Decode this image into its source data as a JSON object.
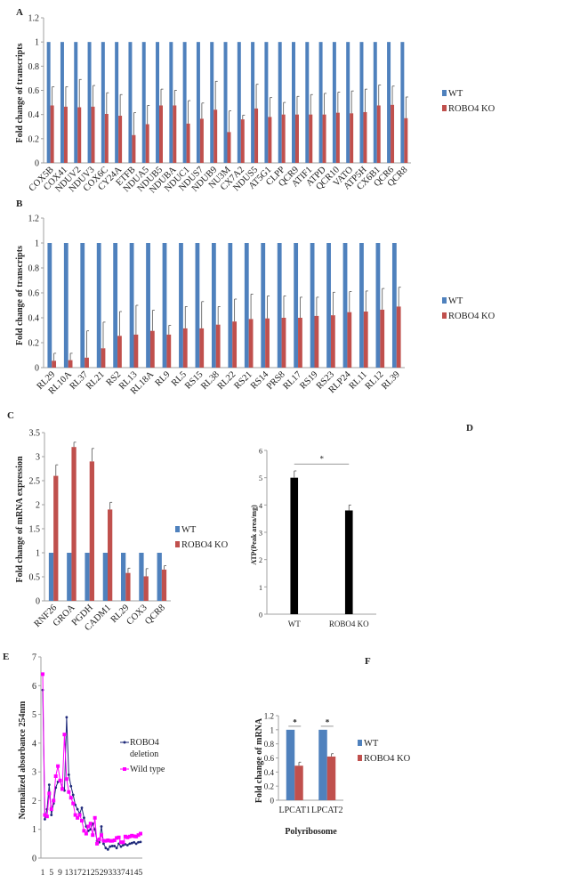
{
  "colors": {
    "wt": "#4f81bd",
    "ko": "#c0504d",
    "black": "#000000",
    "robo4_line": "#1f2a7a",
    "wildtype_line": "#ff00ff",
    "axis": "#a0a0a0"
  },
  "chart_data": [
    {
      "id": "A",
      "panel_label": "A",
      "type": "bar",
      "ylabel": "Fold change of transcripts",
      "ylim": [
        0,
        1.2
      ],
      "ystep": 0.2,
      "legend_position": "right",
      "grid": false,
      "categories": [
        "COX5B",
        "COX41",
        "NDUV2",
        "NDUV3",
        "COX6C",
        "CY24A",
        "ETFB",
        "NDUA5",
        "NDUB5",
        "NDUBA",
        "NDUC1",
        "NDUS7",
        "NDUB9",
        "NU3M",
        "CX7A2",
        "NDUS5",
        "AT5G1",
        "CLPP",
        "QCR9",
        "ATIF1",
        "ATPD",
        "QCR10",
        "VATO",
        "ATP5H",
        "CX6B1",
        "QCR6",
        "QCR8"
      ],
      "series": [
        {
          "name": "WT",
          "values": [
            1,
            1,
            1,
            1,
            1,
            1,
            1,
            1,
            1,
            1,
            1,
            1,
            1,
            1,
            1,
            1,
            1,
            1,
            1,
            1,
            1,
            1,
            1,
            1,
            1,
            1,
            1
          ]
        },
        {
          "name": "ROBO4 KO",
          "values": [
            0.475,
            0.465,
            0.46,
            0.465,
            0.405,
            0.39,
            0.23,
            0.32,
            0.475,
            0.475,
            0.325,
            0.365,
            0.44,
            0.255,
            0.36,
            0.45,
            0.38,
            0.4,
            0.4,
            0.4,
            0.4,
            0.415,
            0.41,
            0.42,
            0.475,
            0.48,
            0.37
          ],
          "error_upper": [
            0.63,
            0.63,
            0.69,
            0.64,
            0.58,
            0.565,
            0.415,
            0.475,
            0.61,
            0.6,
            0.515,
            0.495,
            0.675,
            0.43,
            0.395,
            0.65,
            0.54,
            0.5,
            0.55,
            0.565,
            0.575,
            0.585,
            0.595,
            0.61,
            0.645,
            0.635,
            0.545
          ]
        }
      ]
    },
    {
      "id": "B",
      "panel_label": "B",
      "type": "bar",
      "ylabel": "Fold change of transcripts",
      "ylim": [
        0,
        1.2
      ],
      "ystep": 0.2,
      "legend_position": "right",
      "grid": false,
      "categories": [
        "RL29",
        "RL10A",
        "RL37",
        "RL21",
        "RS2",
        "RL13",
        "RL18A",
        "RL9",
        "RL5",
        "RS15",
        "RL38",
        "RL22",
        "RS21",
        "RS14",
        "PRS8",
        "RL17",
        "RS19",
        "RS23",
        "RLP24",
        "RL11",
        "RL12",
        "RL39"
      ],
      "series": [
        {
          "name": "WT",
          "values": [
            1,
            1,
            1,
            1,
            1,
            1,
            1,
            1,
            1,
            1,
            1,
            1,
            1,
            1,
            1,
            1,
            1,
            1,
            1,
            1,
            1,
            1
          ]
        },
        {
          "name": "ROBO4 KO",
          "values": [
            0.055,
            0.06,
            0.08,
            0.155,
            0.255,
            0.265,
            0.295,
            0.265,
            0.315,
            0.315,
            0.345,
            0.37,
            0.39,
            0.395,
            0.4,
            0.4,
            0.415,
            0.42,
            0.445,
            0.45,
            0.465,
            0.49
          ],
          "error_upper": [
            0.115,
            0.115,
            0.295,
            0.365,
            0.45,
            0.5,
            0.46,
            0.34,
            0.49,
            0.53,
            0.49,
            0.55,
            0.59,
            0.575,
            0.575,
            0.565,
            0.565,
            0.605,
            0.61,
            0.615,
            0.635,
            0.645
          ]
        }
      ]
    },
    {
      "id": "C",
      "panel_label": "C",
      "type": "bar",
      "ylabel": "Fold change of mRNA expression",
      "ylim": [
        0,
        3.5
      ],
      "ystep": 0.5,
      "legend_position": "right",
      "grid": false,
      "categories": [
        "RNF26",
        "GROA",
        "PGDH",
        "CADM1",
        "RL29",
        "COX3",
        "QCR8"
      ],
      "series": [
        {
          "name": "WT",
          "values": [
            1,
            1,
            1,
            1,
            1,
            1,
            1
          ]
        },
        {
          "name": "ROBO4 KO",
          "values": [
            2.6,
            3.2,
            2.9,
            1.9,
            0.58,
            0.51,
            0.65
          ],
          "error_upper": [
            2.83,
            3.3,
            3.17,
            2.05,
            0.68,
            0.67,
            0.73
          ]
        }
      ]
    },
    {
      "id": "D",
      "panel_label": "D",
      "type": "bar",
      "ylabel": "ATP(Peak area/mg)",
      "ylim": [
        0,
        6
      ],
      "ystep": 1,
      "grid": false,
      "significance": "*",
      "categories": [
        "WT",
        "ROBO4 KO"
      ],
      "series": [
        {
          "values": [
            5.0,
            3.8
          ],
          "error_upper": [
            5.25,
            4.0
          ]
        }
      ]
    },
    {
      "id": "E",
      "panel_label": "E",
      "type": "line",
      "ylabel": "Normalized absorbance 254nm",
      "ylim": [
        0,
        7
      ],
      "ystep": 1,
      "legend_position": "right",
      "grid": false,
      "xticks": [
        "1",
        "5",
        "9",
        "13",
        "17",
        "21",
        "25",
        "29",
        "33",
        "37",
        "41",
        "45"
      ],
      "x_start": 1,
      "series": [
        {
          "name": "ROBO4 deletion",
          "name_lines": [
            "ROBO4",
            "deletion"
          ],
          "marker": "diamond",
          "values": [
            5.85,
            1.35,
            1.7,
            2.55,
            1.5,
            1.9,
            2.45,
            2.65,
            2.7,
            2.45,
            2.35,
            4.9,
            2.9,
            2.5,
            2.2,
            1.85,
            1.7,
            1.55,
            1.75,
            1.4,
            1.1,
            0.95,
            1.0,
            1.2,
            1.0,
            0.6,
            0.55,
            1.1,
            0.5,
            0.35,
            0.3,
            0.4,
            0.42,
            0.42,
            0.35,
            0.5,
            0.4,
            0.45,
            0.48,
            0.45,
            0.5,
            0.52,
            0.55,
            0.5,
            0.55,
            0.56
          ]
        },
        {
          "name": "Wild type",
          "marker": "square",
          "values": [
            6.4,
            1.5,
            1.45,
            2.25,
            1.7,
            2.0,
            2.85,
            3.2,
            2.7,
            2.4,
            4.3,
            2.75,
            2.3,
            2.1,
            1.9,
            1.5,
            1.4,
            1.5,
            1.3,
            0.95,
            0.85,
            1.1,
            1.2,
            0.8,
            1.4,
            0.5,
            0.65,
            0.8,
            0.6,
            0.6,
            0.62,
            0.6,
            0.6,
            0.62,
            0.7,
            0.72,
            0.55,
            0.55,
            0.75,
            0.72,
            0.75,
            0.78,
            0.76,
            0.75,
            0.8,
            0.85
          ]
        }
      ]
    },
    {
      "id": "F",
      "panel_label": "F",
      "type": "bar",
      "ylabel": "Fold change of mRNA",
      "xlabel": "Polyribosome",
      "ylim": [
        0,
        1.2
      ],
      "ystep": 0.2,
      "legend_position": "right",
      "grid": false,
      "significance": "*",
      "categories": [
        "LPCAT1",
        "LPCAT2"
      ],
      "series": [
        {
          "name": "WT",
          "values": [
            1,
            1
          ]
        },
        {
          "name": "ROBO4 KO",
          "values": [
            0.49,
            0.62
          ],
          "error_upper": [
            0.54,
            0.66
          ]
        }
      ]
    }
  ]
}
